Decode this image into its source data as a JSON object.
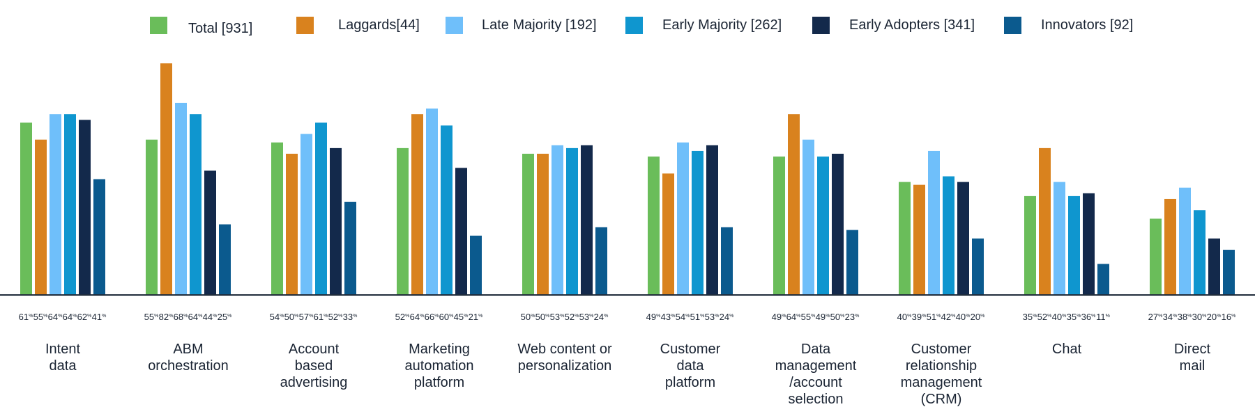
{
  "chart_data": {
    "type": "bar",
    "title": "",
    "xlabel": "",
    "ylabel": "",
    "ylim": [
      0,
      90
    ],
    "grid": false,
    "legend_position": "top",
    "categories": [
      [
        "Intent",
        "data"
      ],
      [
        "ABM",
        "orchestration"
      ],
      [
        "Account",
        "based",
        "advertising"
      ],
      [
        "Marketing",
        "automation",
        "platform"
      ],
      [
        "Web content or",
        "personalization"
      ],
      [
        "Customer",
        "data",
        "platform"
      ],
      [
        "Data",
        "management",
        "/account",
        "selection"
      ],
      [
        "Customer",
        "relationship",
        "management",
        "(CRM)"
      ],
      [
        "Chat"
      ],
      [
        "Direct",
        "mail"
      ]
    ],
    "series": [
      {
        "name": "Total [931]",
        "color": "#6abd5a",
        "values": [
          61,
          55,
          54,
          52,
          50,
          49,
          49,
          40,
          35,
          27
        ]
      },
      {
        "name": "Laggards[44]",
        "color": "#d9821e",
        "values": [
          55,
          82,
          50,
          64,
          50,
          43,
          64,
          39,
          52,
          34
        ]
      },
      {
        "name": "Late Majority [192]",
        "color": "#6fbffa",
        "values": [
          64,
          68,
          57,
          66,
          53,
          54,
          55,
          51,
          40,
          38
        ]
      },
      {
        "name": "Early Majority [262]",
        "color": "#0f96cf",
        "values": [
          64,
          64,
          61,
          60,
          52,
          51,
          49,
          42,
          35,
          30
        ]
      },
      {
        "name": "Early Adopters [341]",
        "color": "#13294b",
        "values": [
          62,
          44,
          52,
          45,
          53,
          53,
          50,
          40,
          36,
          20
        ]
      },
      {
        "name": "Innovators [92]",
        "color": "#0b5a8e",
        "values": [
          41,
          25,
          33,
          21,
          24,
          24,
          23,
          20,
          11,
          16
        ]
      }
    ],
    "value_suffix": "%"
  }
}
